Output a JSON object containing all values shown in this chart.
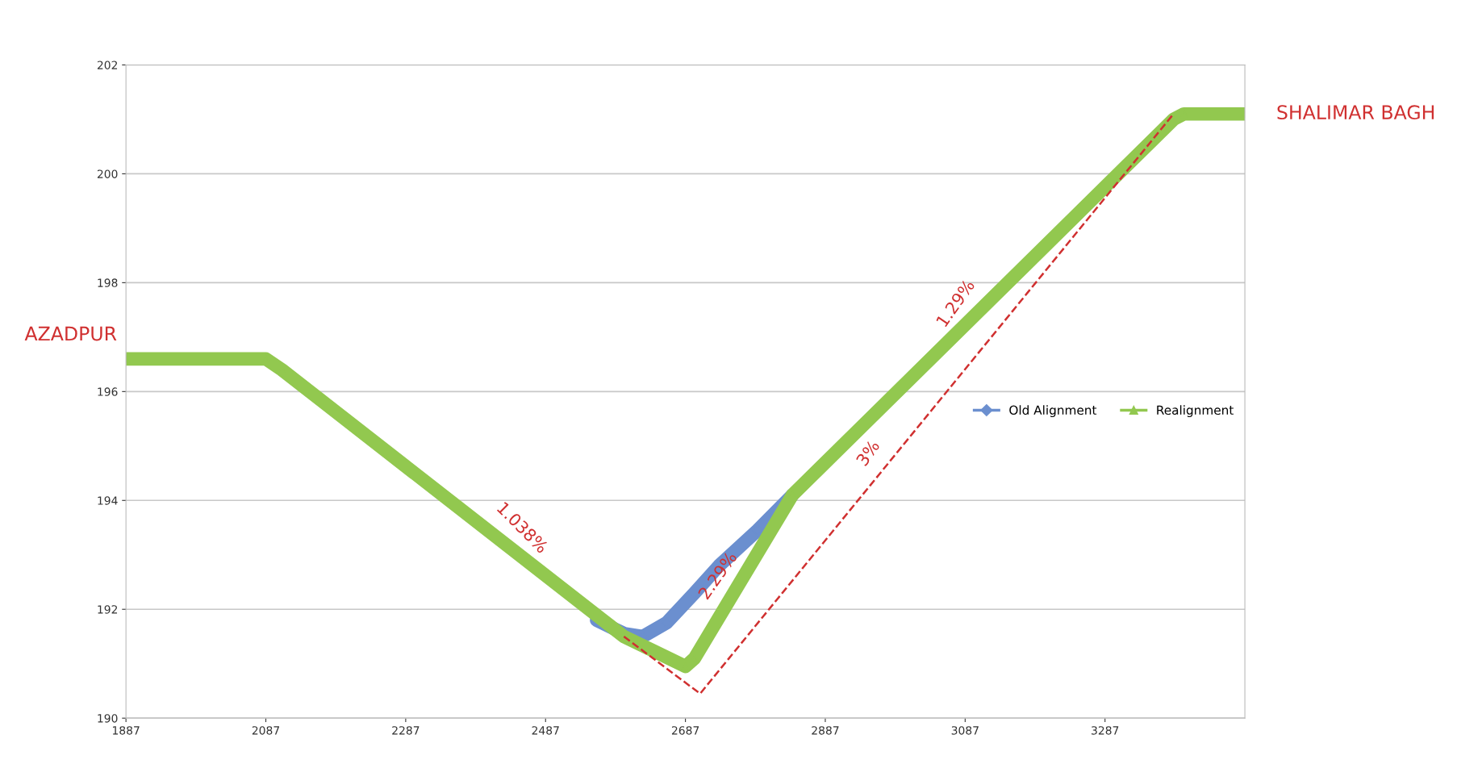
{
  "chart_data": {
    "type": "line",
    "xlim": [
      1887,
      3487
    ],
    "xticks": [
      1887,
      2087,
      2287,
      2487,
      2687,
      2887,
      3087,
      3287
    ],
    "ylim": [
      190,
      202
    ],
    "yticks": [
      190,
      192,
      194,
      196,
      198,
      200,
      202
    ],
    "grid": "y",
    "legend": "right",
    "line_style": "solid",
    "series": [
      {
        "name": "Old Alignment",
        "color": "#6b8fcf",
        "marker": "diamond",
        "x": [
          2560,
          2600,
          2626,
          2660,
          2700,
          2735,
          2790,
          2840
        ],
        "values": [
          191.8,
          191.55,
          191.5,
          191.75,
          192.3,
          192.8,
          193.45,
          194.1
        ]
      },
      {
        "name": "Realignment",
        "color": "#92c84f",
        "marker": "triangle",
        "x": [
          1887,
          2087,
          2110,
          2599,
          2687,
          2700,
          2840,
          3385,
          3400,
          3487
        ],
        "values": [
          196.6,
          196.6,
          196.4,
          191.5,
          190.95,
          191.1,
          194.1,
          201.0,
          201.1,
          201.1
        ]
      },
      {
        "type": "line",
        "color": "#d03030",
        "line_style": "dashed",
        "marker": "none",
        "x": [
          2599,
          2708,
          3385
        ],
        "values": [
          191.5,
          190.45,
          201.1
        ]
      }
    ],
    "annotations": [
      {
        "text": "AZADPUR",
        "x": 1887,
        "y": 196.7
      },
      {
        "text": "SHALIMAR BAGH",
        "x": 3487,
        "y": 201.1
      },
      {
        "text": "1.038%",
        "x": 2430,
        "y": 193.2
      },
      {
        "text": "2.29%",
        "x": 2760,
        "y": 192.4
      },
      {
        "text": "1.29%",
        "x": 3100,
        "y": 197.4
      },
      {
        "text": "3%",
        "x": 2975,
        "y": 194.65
      }
    ]
  }
}
